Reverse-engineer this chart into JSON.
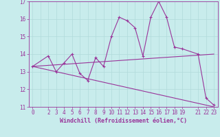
{
  "xlabel": "Windchill (Refroidissement éolien,°C)",
  "background_color": "#c8ecec",
  "grid_color": "#aadddd",
  "line_color": "#993399",
  "xlim": [
    -0.5,
    23.5
  ],
  "ylim": [
    11,
    17
  ],
  "xtick_positions": [
    0,
    2,
    3,
    4,
    5,
    6,
    7,
    8,
    9,
    10,
    11,
    12,
    13,
    14,
    15,
    16,
    17,
    18,
    19,
    21,
    22,
    23
  ],
  "ytick_positions": [
    11,
    12,
    13,
    14,
    15,
    16,
    17
  ],
  "line1_x": [
    0,
    2,
    3,
    4,
    5,
    6,
    7,
    8,
    9,
    10,
    11,
    12,
    13,
    14,
    15,
    16,
    17,
    18,
    19,
    21,
    22,
    23
  ],
  "line1_y": [
    13.3,
    13.9,
    13.0,
    13.5,
    14.0,
    12.9,
    12.5,
    13.8,
    13.3,
    15.0,
    16.1,
    15.9,
    15.5,
    13.9,
    16.1,
    17.0,
    16.1,
    14.4,
    14.3,
    14.0,
    11.5,
    11.1
  ],
  "line2_x": [
    0,
    23
  ],
  "line2_y": [
    13.3,
    11.0
  ],
  "line3_x": [
    0,
    23
  ],
  "line3_y": [
    13.3,
    14.0
  ],
  "tick_font_size": 5.5,
  "label_font_size": 6.0
}
